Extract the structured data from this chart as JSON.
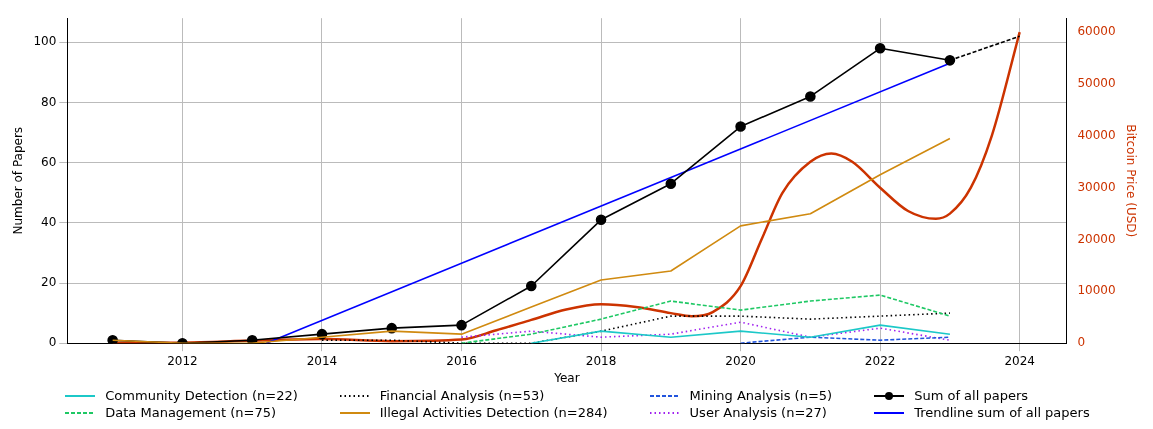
{
  "chart_data": {
    "type": "line",
    "xlabel": "Year",
    "ylabel": "Number of Papers",
    "y2label": "Bitcoin Price (USD)",
    "xlim": [
      2010.35,
      2024.67
    ],
    "xticks": [
      2012,
      2014,
      2016,
      2018,
      2020,
      2022,
      2024
    ],
    "ylim": [
      0,
      108
    ],
    "yticks": [
      0,
      20,
      40,
      60,
      80,
      100
    ],
    "y2lim": [
      0,
      62700
    ],
    "y2ticks": [
      0,
      10000,
      20000,
      30000,
      40000,
      50000,
      60000
    ],
    "grid": true,
    "legend": "bottom",
    "series": [
      {
        "name": "Community Detection (n=22)",
        "color": "#1cc8c8",
        "line_style": "solid",
        "x": [
          2017,
          2018,
          2019,
          2020,
          2021,
          2022,
          2023
        ],
        "values": [
          0,
          4,
          2,
          4,
          2,
          6,
          3
        ]
      },
      {
        "name": "Data Management (n=75)",
        "color": "#1ec864",
        "line_style": "dashed",
        "x": [
          2016,
          2017,
          2018,
          2019,
          2020,
          2021,
          2022,
          2023
        ],
        "values": [
          0,
          3,
          8,
          14,
          11,
          14,
          16,
          9
        ]
      },
      {
        "name": "Financial Analysis (n=53)",
        "color": "#000000",
        "line_style": "dotted",
        "x": [
          2014,
          2015,
          2016,
          2017,
          2018,
          2019,
          2020,
          2021,
          2022,
          2023
        ],
        "values": [
          1,
          1,
          0,
          0,
          4,
          9,
          9,
          8,
          9,
          10
        ]
      },
      {
        "name": "Illegal Activities Detection (n=284)",
        "color": "#d08a10",
        "line_style": "solid",
        "x": [
          2011,
          2012,
          2013,
          2014,
          2015,
          2016,
          2017,
          2018,
          2019,
          2020,
          2021,
          2022,
          2023
        ],
        "values": [
          1,
          0,
          0,
          2,
          4,
          3,
          12,
          21,
          24,
          39,
          43,
          56,
          68
        ]
      },
      {
        "name": "Mining Analysis (n=5)",
        "color": "#2255dd",
        "line_style": "dashed",
        "x": [
          2020,
          2021,
          2022,
          2023
        ],
        "values": [
          0,
          2,
          1,
          2
        ]
      },
      {
        "name": "User Analysis (n=27)",
        "color": "#a020f0",
        "line_style": "dotted",
        "x": [
          2016,
          2017,
          2018,
          2019,
          2020,
          2021,
          2022,
          2023
        ],
        "values": [
          2,
          4,
          2,
          3,
          7,
          2,
          5,
          1
        ]
      },
      {
        "name": "Sum of all papers",
        "color": "#000000",
        "line_style": "solid",
        "marker": "circle",
        "x": [
          2011,
          2012,
          2013,
          2014,
          2015,
          2016,
          2017,
          2018,
          2019,
          2020,
          2021,
          2022,
          2023
        ],
        "values": [
          1,
          0,
          1,
          3,
          5,
          6,
          19,
          41,
          53,
          72,
          82,
          98,
          94
        ]
      },
      {
        "name": "Trendline sum of all papers",
        "color": "#0000ff",
        "line_style": "solid",
        "x": [
          2013.2,
          2023
        ],
        "values": [
          0,
          93
        ]
      },
      {
        "color": "#000000",
        "line_style": "dashed",
        "x": [
          2023,
          2024
        ],
        "values": [
          94,
          102
        ]
      },
      {
        "color": "#cc3300",
        "line_style": "solid",
        "axis": "y2",
        "x": [
          2011,
          2012,
          2013,
          2014,
          2015,
          2016,
          2016.5,
          2017,
          2017.5,
          2018,
          2018.5,
          2019,
          2019.3,
          2019.6,
          2020,
          2020.3,
          2020.6,
          2021,
          2021.3,
          2021.6,
          2022,
          2022.4,
          2022.8,
          2023,
          2023.3,
          2023.6,
          2024
        ],
        "values": [
          100,
          100,
          500,
          800,
          400,
          700,
          2500,
          4500,
          6500,
          7500,
          7000,
          5800,
          5200,
          6000,
          11000,
          20000,
          29000,
          35000,
          36600,
          35000,
          30000,
          25500,
          24000,
          25000,
          30000,
          40000,
          60000
        ]
      }
    ]
  }
}
